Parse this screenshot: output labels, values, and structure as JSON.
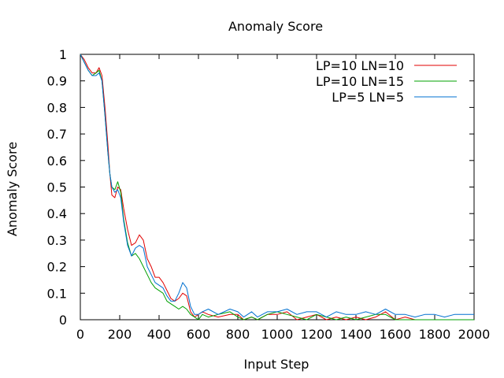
{
  "chart_data": {
    "type": "line",
    "title": "Anomaly Score",
    "xlabel": "Input Step",
    "ylabel": "Anomaly Score",
    "xlim": [
      0,
      2000
    ],
    "ylim": [
      0,
      1
    ],
    "xticks": [
      "0",
      "200",
      "400",
      "600",
      "800",
      "1000",
      "1200",
      "1400",
      "1600",
      "1800",
      "2000"
    ],
    "yticks": [
      "0",
      "0.1",
      "0.2",
      "0.3",
      "0.4",
      "0.5",
      "0.6",
      "0.7",
      "0.8",
      "0.9",
      "1"
    ],
    "grid": false,
    "legend_position": "top-right",
    "series": [
      {
        "name": "LP=10 LN=10",
        "color": "#e00000",
        "points": [
          [
            0,
            1.0
          ],
          [
            20,
            0.98
          ],
          [
            40,
            0.95
          ],
          [
            60,
            0.93
          ],
          [
            80,
            0.93
          ],
          [
            95,
            0.95
          ],
          [
            110,
            0.92
          ],
          [
            125,
            0.8
          ],
          [
            140,
            0.66
          ],
          [
            150,
            0.55
          ],
          [
            160,
            0.47
          ],
          [
            175,
            0.46
          ],
          [
            190,
            0.5
          ],
          [
            205,
            0.49
          ],
          [
            220,
            0.42
          ],
          [
            240,
            0.34
          ],
          [
            260,
            0.28
          ],
          [
            280,
            0.29
          ],
          [
            300,
            0.32
          ],
          [
            320,
            0.3
          ],
          [
            340,
            0.23
          ],
          [
            360,
            0.2
          ],
          [
            380,
            0.16
          ],
          [
            400,
            0.16
          ],
          [
            420,
            0.14
          ],
          [
            440,
            0.11
          ],
          [
            460,
            0.08
          ],
          [
            480,
            0.07
          ],
          [
            500,
            0.08
          ],
          [
            520,
            0.1
          ],
          [
            540,
            0.09
          ],
          [
            560,
            0.03
          ],
          [
            580,
            0.01
          ],
          [
            600,
            0.02
          ],
          [
            620,
            0.03
          ],
          [
            650,
            0.02
          ],
          [
            700,
            0.01
          ],
          [
            760,
            0.02
          ],
          [
            800,
            0.02
          ],
          [
            830,
            0.0
          ],
          [
            870,
            0.01
          ],
          [
            900,
            0.0
          ],
          [
            950,
            0.02
          ],
          [
            1000,
            0.02
          ],
          [
            1050,
            0.03
          ],
          [
            1100,
            0.0
          ],
          [
            1150,
            0.01
          ],
          [
            1200,
            0.02
          ],
          [
            1250,
            0.0
          ],
          [
            1300,
            0.01
          ],
          [
            1350,
            0.0
          ],
          [
            1400,
            0.01
          ],
          [
            1450,
            0.0
          ],
          [
            1500,
            0.01
          ],
          [
            1550,
            0.03
          ],
          [
            1600,
            0.0
          ],
          [
            1650,
            0.01
          ],
          [
            1700,
            0.0
          ],
          [
            1800,
            0.0
          ],
          [
            1900,
            0.0
          ],
          [
            2000,
            0.0
          ]
        ]
      },
      {
        "name": "LP=10 LN=15",
        "color": "#00a000",
        "points": [
          [
            0,
            1.0
          ],
          [
            20,
            0.97
          ],
          [
            40,
            0.94
          ],
          [
            60,
            0.92
          ],
          [
            80,
            0.93
          ],
          [
            95,
            0.94
          ],
          [
            110,
            0.9
          ],
          [
            125,
            0.77
          ],
          [
            140,
            0.63
          ],
          [
            150,
            0.55
          ],
          [
            160,
            0.5
          ],
          [
            175,
            0.49
          ],
          [
            190,
            0.52
          ],
          [
            205,
            0.48
          ],
          [
            220,
            0.38
          ],
          [
            240,
            0.29
          ],
          [
            260,
            0.24
          ],
          [
            280,
            0.25
          ],
          [
            300,
            0.23
          ],
          [
            320,
            0.2
          ],
          [
            340,
            0.17
          ],
          [
            360,
            0.14
          ],
          [
            380,
            0.12
          ],
          [
            400,
            0.11
          ],
          [
            420,
            0.1
          ],
          [
            440,
            0.07
          ],
          [
            460,
            0.06
          ],
          [
            480,
            0.05
          ],
          [
            500,
            0.04
          ],
          [
            520,
            0.05
          ],
          [
            540,
            0.04
          ],
          [
            560,
            0.02
          ],
          [
            580,
            0.01
          ],
          [
            600,
            0.0
          ],
          [
            620,
            0.02
          ],
          [
            650,
            0.01
          ],
          [
            700,
            0.02
          ],
          [
            760,
            0.03
          ],
          [
            800,
            0.01
          ],
          [
            830,
            0.0
          ],
          [
            870,
            0.01
          ],
          [
            900,
            0.0
          ],
          [
            950,
            0.02
          ],
          [
            1000,
            0.03
          ],
          [
            1050,
            0.02
          ],
          [
            1100,
            0.01
          ],
          [
            1150,
            0.0
          ],
          [
            1200,
            0.02
          ],
          [
            1250,
            0.01
          ],
          [
            1300,
            0.0
          ],
          [
            1350,
            0.01
          ],
          [
            1400,
            0.0
          ],
          [
            1450,
            0.01
          ],
          [
            1500,
            0.02
          ],
          [
            1550,
            0.02
          ],
          [
            1600,
            0.0
          ],
          [
            1650,
            0.0
          ],
          [
            1700,
            0.0
          ],
          [
            1800,
            0.0
          ],
          [
            1900,
            0.0
          ],
          [
            2000,
            0.0
          ]
        ]
      },
      {
        "name": "LP=5 LN=5",
        "color": "#0070d0",
        "points": [
          [
            0,
            1.0
          ],
          [
            20,
            0.97
          ],
          [
            40,
            0.94
          ],
          [
            60,
            0.92
          ],
          [
            80,
            0.92
          ],
          [
            95,
            0.93
          ],
          [
            110,
            0.9
          ],
          [
            125,
            0.77
          ],
          [
            140,
            0.63
          ],
          [
            150,
            0.55
          ],
          [
            160,
            0.5
          ],
          [
            175,
            0.48
          ],
          [
            190,
            0.49
          ],
          [
            205,
            0.46
          ],
          [
            220,
            0.37
          ],
          [
            240,
            0.28
          ],
          [
            260,
            0.24
          ],
          [
            280,
            0.27
          ],
          [
            300,
            0.28
          ],
          [
            320,
            0.27
          ],
          [
            340,
            0.2
          ],
          [
            360,
            0.17
          ],
          [
            380,
            0.14
          ],
          [
            400,
            0.13
          ],
          [
            420,
            0.12
          ],
          [
            440,
            0.09
          ],
          [
            460,
            0.07
          ],
          [
            480,
            0.07
          ],
          [
            500,
            0.1
          ],
          [
            520,
            0.14
          ],
          [
            540,
            0.12
          ],
          [
            560,
            0.05
          ],
          [
            580,
            0.02
          ],
          [
            600,
            0.02
          ],
          [
            620,
            0.03
          ],
          [
            650,
            0.04
          ],
          [
            700,
            0.02
          ],
          [
            760,
            0.04
          ],
          [
            800,
            0.03
          ],
          [
            830,
            0.01
          ],
          [
            870,
            0.03
          ],
          [
            900,
            0.01
          ],
          [
            950,
            0.03
          ],
          [
            1000,
            0.03
          ],
          [
            1050,
            0.04
          ],
          [
            1100,
            0.02
          ],
          [
            1150,
            0.03
          ],
          [
            1200,
            0.03
          ],
          [
            1250,
            0.01
          ],
          [
            1300,
            0.03
          ],
          [
            1350,
            0.02
          ],
          [
            1400,
            0.02
          ],
          [
            1450,
            0.03
          ],
          [
            1500,
            0.02
          ],
          [
            1550,
            0.04
          ],
          [
            1600,
            0.02
          ],
          [
            1650,
            0.02
          ],
          [
            1700,
            0.01
          ],
          [
            1750,
            0.02
          ],
          [
            1800,
            0.02
          ],
          [
            1850,
            0.01
          ],
          [
            1900,
            0.02
          ],
          [
            1950,
            0.02
          ],
          [
            2000,
            0.02
          ]
        ]
      }
    ]
  }
}
